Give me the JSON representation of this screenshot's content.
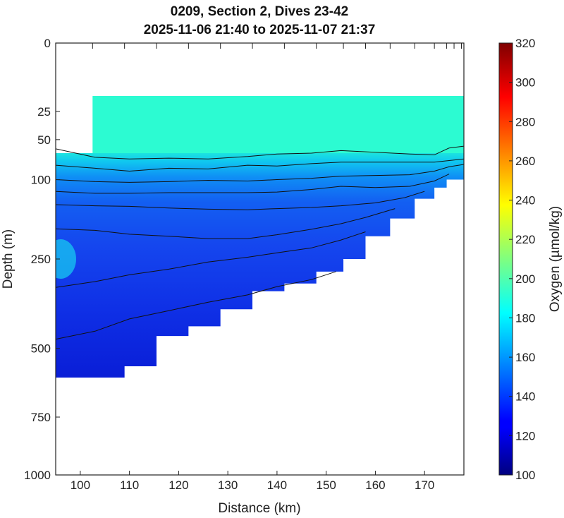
{
  "chart_data": {
    "type": "heatmap",
    "title": "0209, Section 2, Dives 23-42",
    "subtitle": "2025-11-06 21:40 to 2025-11-07 21:37",
    "xlabel": "Distance (km)",
    "ylabel": "Depth (m)",
    "xlim": [
      95,
      178
    ],
    "ylim": [
      0,
      1000
    ],
    "y_scale": "sqrt",
    "x_ticks": [
      100,
      110,
      120,
      130,
      140,
      150,
      160,
      170
    ],
    "y_ticks": [
      0,
      25,
      50,
      100,
      250,
      500,
      750,
      1000
    ],
    "colorbar": {
      "label": "Oxygen (µmol/kg)",
      "range": [
        100,
        320
      ],
      "ticks": [
        100,
        120,
        140,
        160,
        180,
        200,
        220,
        240,
        260,
        280,
        300,
        320
      ],
      "colormap": "jet"
    },
    "dive_x": [
      102.5,
      109,
      115.5,
      122,
      128.5,
      135,
      141.5,
      148,
      153.5,
      158,
      163,
      168,
      172,
      174.5,
      176,
      177.5
    ],
    "fill_top_depth": 15,
    "fill_top_value": 190,
    "profile_max_depth": [
      600,
      600,
      560,
      460,
      430,
      380,
      330,
      310,
      280,
      250,
      200,
      165,
      130,
      112,
      100,
      100,
      100
    ],
    "profile_x_bottom": [
      95,
      102.5,
      109,
      115.5,
      122,
      128.5,
      135,
      141.5,
      148,
      153.5,
      158,
      163,
      168,
      172,
      174.5,
      176,
      178
    ],
    "contours": [
      {
        "x": [
          95,
          103,
          110,
          118,
          126,
          134,
          140,
          147,
          153,
          160,
          167,
          172,
          175,
          178
        ],
        "depth": [
          60,
          70,
          72,
          71,
          72,
          69,
          66,
          65,
          62,
          64,
          66,
          67,
          59,
          57
        ]
      },
      {
        "x": [
          95,
          103,
          110,
          118,
          126,
          134,
          140,
          147,
          153,
          160,
          167,
          172,
          175,
          178
        ],
        "depth": [
          80,
          84,
          88,
          84,
          85,
          80,
          81,
          78,
          76,
          76,
          76,
          76,
          74,
          72
        ]
      },
      {
        "x": [
          95,
          103,
          110,
          118,
          126,
          134,
          140,
          147,
          153,
          160,
          167,
          172,
          175,
          178
        ],
        "depth": [
          100,
          103,
          104,
          103,
          101,
          102,
          100,
          98,
          95,
          94,
          93,
          88,
          82,
          79
        ]
      },
      {
        "x": [
          95,
          103,
          110,
          118,
          126,
          134,
          140,
          147,
          153,
          160,
          167,
          172,
          175
        ],
        "depth": [
          118,
          121,
          121,
          120,
          120,
          120,
          119,
          115,
          110,
          112,
          110,
          102,
          92
        ]
      },
      {
        "x": [
          95,
          103,
          110,
          118,
          126,
          134,
          140,
          147,
          153,
          160,
          166,
          170
        ],
        "depth": [
          140,
          142,
          143,
          146,
          148,
          149,
          147,
          145,
          142,
          137,
          128,
          118
        ]
      },
      {
        "x": [
          95,
          103,
          110,
          118,
          126,
          134,
          140,
          147,
          153,
          158,
          164
        ],
        "depth": [
          185,
          188,
          196,
          200,
          205,
          205,
          197,
          186,
          175,
          163,
          147
        ]
      },
      {
        "x": [
          95,
          103,
          110,
          118,
          126,
          134,
          140,
          147,
          153,
          158
        ],
        "depth": [
          320,
          305,
          288,
          274,
          257,
          246,
          236,
          225,
          208,
          191
        ]
      },
      {
        "x": [
          95,
          103,
          110,
          118,
          126,
          134,
          140,
          147,
          152
        ],
        "depth": [
          470,
          445,
          408,
          384,
          360,
          340,
          318,
          300,
          280
        ]
      }
    ]
  }
}
